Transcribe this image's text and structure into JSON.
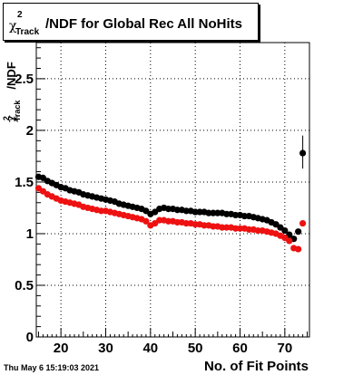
{
  "title": {
    "chi": "χ",
    "sup": "2",
    "sub": "Track",
    "rest": "/NDF for Global Rec All NoHits"
  },
  "axis_labels": {
    "x": "No. of Fit Points",
    "y_chi": "χ",
    "y_sup": "2",
    "y_sub": "Track",
    "y_rest": "/NDF"
  },
  "timestamp": "Thu May  6 15:19:03 2021",
  "chart_data": {
    "type": "scatter",
    "xlim": [
      14.5,
      75.5
    ],
    "ylim": [
      0,
      2.85
    ],
    "x_ticks": [
      20,
      30,
      40,
      50,
      60,
      70
    ],
    "y_ticks": [
      0,
      0.5,
      1,
      1.5,
      2,
      2.5
    ],
    "y_tick_labels": [
      "0",
      "0.5",
      "1",
      "1.5",
      "2",
      "2.5"
    ],
    "grid": true,
    "series": [
      {
        "color": "#000000",
        "x": [
          15,
          16,
          17,
          18,
          19,
          20,
          21,
          22,
          23,
          24,
          25,
          26,
          27,
          28,
          29,
          30,
          31,
          32,
          33,
          34,
          35,
          36,
          37,
          38,
          39,
          40,
          41,
          42,
          43,
          44,
          45,
          46,
          47,
          48,
          49,
          50,
          51,
          52,
          53,
          54,
          55,
          56,
          57,
          58,
          59,
          60,
          61,
          62,
          63,
          64,
          65,
          66,
          67,
          68,
          69,
          70,
          71,
          72,
          73,
          74
        ],
        "y": [
          1.55,
          1.54,
          1.51,
          1.49,
          1.47,
          1.45,
          1.44,
          1.42,
          1.41,
          1.4,
          1.38,
          1.37,
          1.36,
          1.35,
          1.34,
          1.33,
          1.32,
          1.31,
          1.29,
          1.28,
          1.27,
          1.26,
          1.25,
          1.24,
          1.22,
          1.19,
          1.21,
          1.24,
          1.25,
          1.24,
          1.24,
          1.23,
          1.23,
          1.22,
          1.22,
          1.21,
          1.21,
          1.21,
          1.2,
          1.2,
          1.2,
          1.2,
          1.19,
          1.19,
          1.18,
          1.18,
          1.17,
          1.17,
          1.16,
          1.15,
          1.14,
          1.13,
          1.11,
          1.09,
          1.06,
          1.03,
          0.99,
          0.95,
          1.02,
          1.78
        ],
        "error_x": 74,
        "error_low": 1.63,
        "error_high": 1.95
      },
      {
        "color": "#ee1111",
        "x": [
          15,
          16,
          17,
          18,
          19,
          20,
          21,
          22,
          23,
          24,
          25,
          26,
          27,
          28,
          29,
          30,
          31,
          32,
          33,
          34,
          35,
          36,
          37,
          38,
          39,
          40,
          41,
          42,
          43,
          44,
          45,
          46,
          47,
          48,
          49,
          50,
          51,
          52,
          53,
          54,
          55,
          56,
          57,
          58,
          59,
          60,
          61,
          62,
          63,
          64,
          65,
          66,
          67,
          68,
          69,
          70,
          71,
          72,
          73,
          74
        ],
        "y": [
          1.44,
          1.41,
          1.38,
          1.36,
          1.34,
          1.32,
          1.31,
          1.3,
          1.29,
          1.28,
          1.26,
          1.25,
          1.24,
          1.23,
          1.22,
          1.22,
          1.21,
          1.2,
          1.19,
          1.18,
          1.17,
          1.16,
          1.15,
          1.14,
          1.12,
          1.08,
          1.1,
          1.13,
          1.13,
          1.12,
          1.12,
          1.11,
          1.11,
          1.1,
          1.1,
          1.09,
          1.09,
          1.08,
          1.08,
          1.07,
          1.07,
          1.06,
          1.06,
          1.06,
          1.05,
          1.05,
          1.05,
          1.04,
          1.04,
          1.03,
          1.03,
          1.02,
          1.01,
          1.0,
          0.98,
          0.96,
          0.93,
          0.86,
          0.85,
          1.1
        ]
      }
    ]
  }
}
